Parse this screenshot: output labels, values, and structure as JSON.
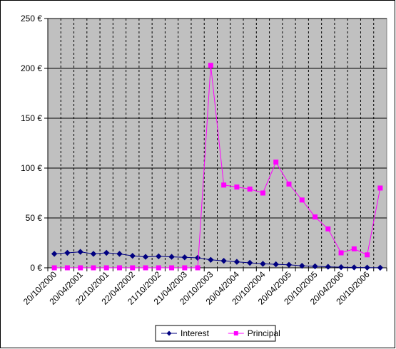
{
  "chart_data": {
    "type": "line",
    "x": [
      "20/10/2000",
      "20/01/2001",
      "20/04/2001",
      "20/07/2001",
      "22/10/2001",
      "20/01/2002",
      "22/04/2002",
      "20/07/2002",
      "21/10/2002",
      "20/01/2003",
      "21/04/2003",
      "20/07/2003",
      "20/10/2003",
      "20/01/2004",
      "20/04/2004",
      "20/07/2004",
      "20/10/2004",
      "20/01/2005",
      "20/04/2005",
      "20/07/2005",
      "20/10/2005",
      "20/01/2006",
      "20/04/2006",
      "20/07/2006",
      "20/10/2006",
      "20/01/2007"
    ],
    "x_tick_labels": [
      "20/10/2000",
      "20/04/2001",
      "22/10/2001",
      "22/04/2002",
      "21/10/2002",
      "21/04/2003",
      "20/10/2003",
      "20/04/2004",
      "20/10/2004",
      "20/04/2005",
      "20/10/2005",
      "20/04/2006",
      "20/10/2006"
    ],
    "series": [
      {
        "name": "Interest",
        "color": "#000080",
        "marker": "diamond",
        "values": [
          14,
          15,
          16,
          14,
          15,
          14,
          12,
          11,
          11.5,
          11,
          10.5,
          10,
          8,
          7,
          6,
          5,
          4,
          3.5,
          3,
          2,
          1.5,
          1,
          0.6,
          0.4,
          0.2,
          0.1
        ]
      },
      {
        "name": "Principal",
        "color": "#ff00ff",
        "marker": "square",
        "values": [
          0,
          0,
          0,
          0,
          0,
          0,
          0,
          0,
          0,
          0,
          0,
          0,
          203,
          83,
          81,
          79,
          75,
          106,
          84,
          68,
          51,
          39,
          15,
          19,
          13,
          80
        ]
      }
    ],
    "y_ticks": [
      "0 €",
      "50 €",
      "100 €",
      "150 €",
      "200 €",
      "250 €"
    ],
    "y_tick_values": [
      0,
      50,
      100,
      150,
      200,
      250
    ],
    "ylim": [
      0,
      250
    ],
    "legend_position": "bottom",
    "horizontal_grid": true,
    "vertical_grid": "dashed",
    "plot_background": "#c0c0c0"
  }
}
